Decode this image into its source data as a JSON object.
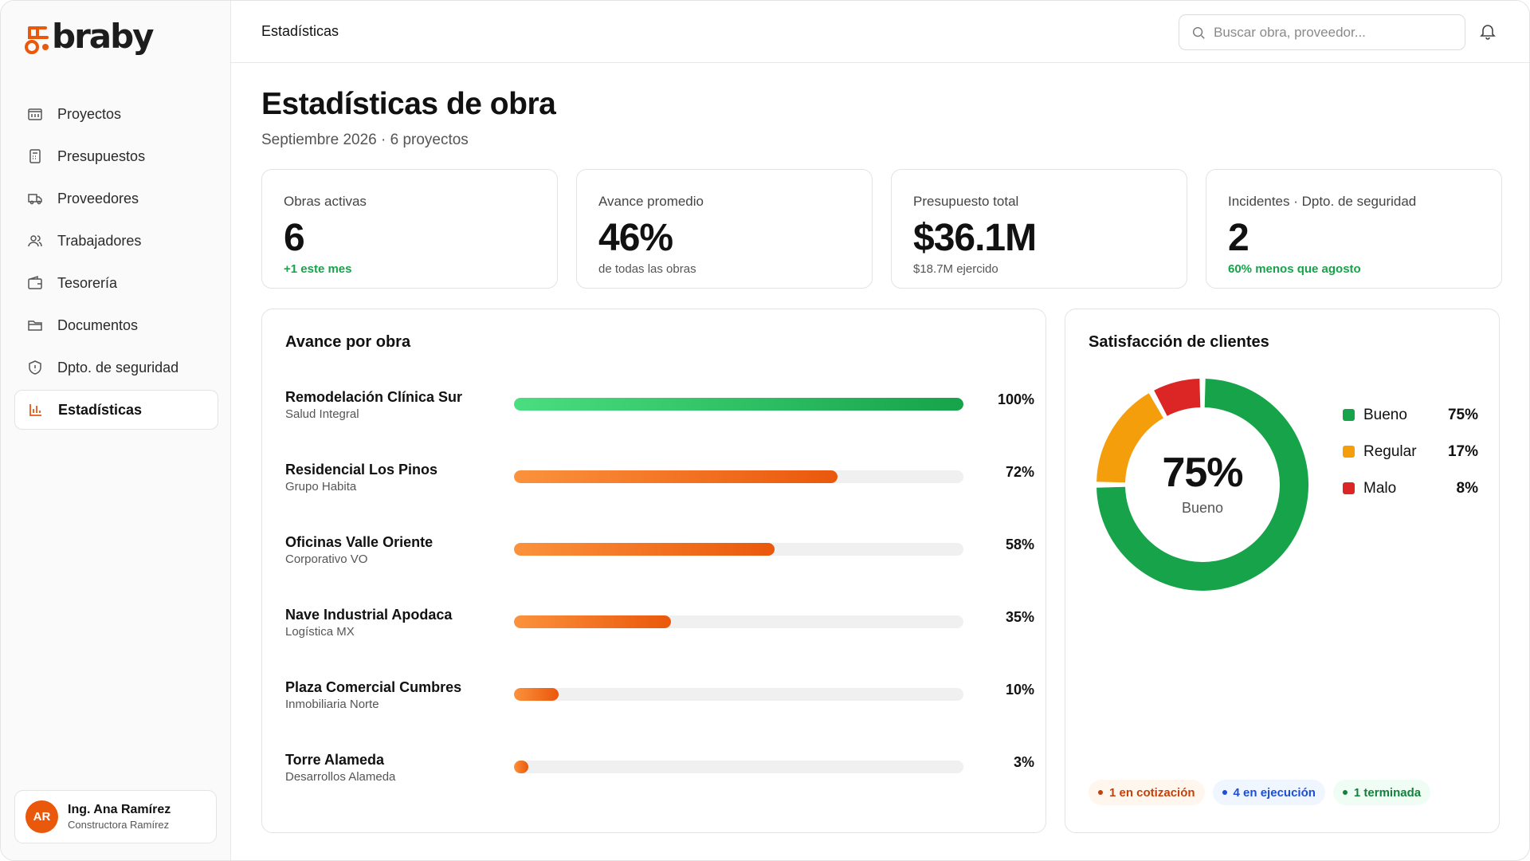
{
  "brand": {
    "logo_text": "braby",
    "accent": "#ea580c"
  },
  "sidebar": {
    "items": [
      {
        "label": "Proyectos",
        "icon": "building-icon"
      },
      {
        "label": "Presupuestos",
        "icon": "calculator-icon"
      },
      {
        "label": "Proveedores",
        "icon": "truck-icon"
      },
      {
        "label": "Trabajadores",
        "icon": "users-icon"
      },
      {
        "label": "Tesorería",
        "icon": "wallet-icon"
      },
      {
        "label": "Documentos",
        "icon": "folder-icon"
      },
      {
        "label": "Dpto. de seguridad",
        "icon": "shield-icon"
      },
      {
        "label": "Estadísticas",
        "icon": "bar-chart-icon",
        "active": true
      }
    ],
    "user": {
      "initials": "AR",
      "name": "Ing. Ana Ramírez",
      "company": "Constructora Ramírez"
    }
  },
  "topbar": {
    "breadcrumb": "Estadísticas",
    "search_placeholder": "Buscar obra, proveedor..."
  },
  "page": {
    "title": "Estadísticas de obra",
    "subtitle": "Septiembre 2026 · 6 proyectos"
  },
  "kpis": [
    {
      "label": "Obras activas",
      "value": "6",
      "foot": "+1 este mes",
      "foot_color": "green"
    },
    {
      "label": "Avance promedio",
      "value": "46%",
      "foot": "de todas las obras",
      "foot_color": "gray"
    },
    {
      "label": "Presupuesto total",
      "value": "$36.1M",
      "foot": "$18.7M ejercido",
      "foot_color": "gray"
    },
    {
      "label": "Incidentes · Dpto. de seguridad",
      "value": "2",
      "foot": "60% menos que agosto",
      "foot_color": "green"
    }
  ],
  "progress": {
    "title": "Avance por obra",
    "rows": [
      {
        "name": "Remodelación Clínica Sur",
        "client": "Salud Integral",
        "pct_label": "100%",
        "value": 100,
        "color": "green"
      },
      {
        "name": "Residencial Los Pinos",
        "client": "Grupo Habita",
        "pct_label": "72%",
        "value": 72,
        "color": "orange"
      },
      {
        "name": "Oficinas Valle Oriente",
        "client": "Corporativo VO",
        "pct_label": "58%",
        "value": 58,
        "color": "orange"
      },
      {
        "name": "Nave Industrial Apodaca",
        "client": "Logística MX",
        "pct_label": "35%",
        "value": 35,
        "color": "orange"
      },
      {
        "name": "Plaza Comercial Cumbres",
        "client": "Inmobiliaria Norte",
        "pct_label": "10%",
        "value": 10,
        "color": "orange"
      },
      {
        "name": "Torre Alameda",
        "client": "Desarrollos Alameda",
        "pct_label": "3%",
        "value": 3,
        "color": "orange"
      }
    ]
  },
  "satisfaction": {
    "title": "Satisfacción de clientes",
    "center_value": "75%",
    "center_label": "Bueno",
    "legend": [
      {
        "label": "Bueno",
        "value_label": "75%",
        "value": 75,
        "color": "#16a34a"
      },
      {
        "label": "Regular",
        "value_label": "17%",
        "value": 17,
        "color": "#f59e0b"
      },
      {
        "label": "Malo",
        "value_label": "8%",
        "value": 8,
        "color": "#dc2626"
      }
    ],
    "chips": [
      {
        "text": "1 en cotización",
        "bg": "#fff7ed",
        "fg": "#c2410c",
        "dot": "#c2410c"
      },
      {
        "text": "4 en ejecución",
        "bg": "#eff6ff",
        "fg": "#1d4ed8",
        "dot": "#1d4ed8"
      },
      {
        "text": "1 terminada",
        "bg": "#f0fdf4",
        "fg": "#15803d",
        "dot": "#15803d"
      }
    ]
  }
}
